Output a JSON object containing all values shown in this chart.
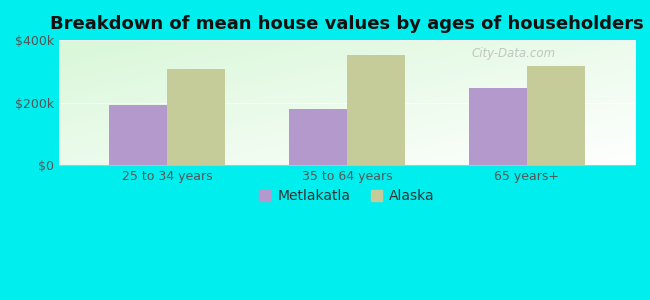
{
  "title": "Breakdown of mean house values by ages of householders",
  "categories": [
    "25 to 34 years",
    "35 to 64 years",
    "65 years+"
  ],
  "metlakatla_values": [
    192000,
    180000,
    248000
  ],
  "alaska_values": [
    308000,
    352000,
    318000
  ],
  "metlakatla_color": "#b399cc",
  "alaska_color": "#c5cc99",
  "ylim": [
    0,
    400000
  ],
  "yticks": [
    0,
    200000,
    400000
  ],
  "ytick_labels": [
    "$0",
    "$200k",
    "$400k"
  ],
  "bar_width": 0.32,
  "legend_metlakatla": "Metlakatla",
  "legend_alaska": "Alaska",
  "background_color": "#00eeee",
  "title_fontsize": 13,
  "tick_fontsize": 9,
  "legend_fontsize": 10,
  "watermark": "City-Data.com"
}
